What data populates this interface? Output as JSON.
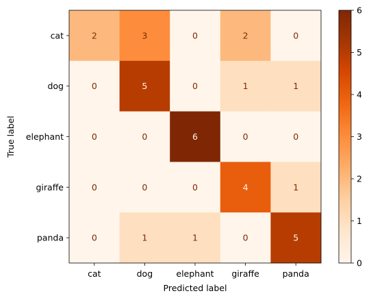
{
  "chart_data": {
    "type": "heatmap",
    "title": "",
    "xlabel": "Predicted label",
    "ylabel": "True label",
    "x_categories": [
      "cat",
      "dog",
      "elephant",
      "giraffe",
      "panda"
    ],
    "y_categories": [
      "cat",
      "dog",
      "elephant",
      "giraffe",
      "panda"
    ],
    "values": [
      [
        2,
        3,
        0,
        2,
        0
      ],
      [
        0,
        5,
        0,
        1,
        1
      ],
      [
        0,
        0,
        6,
        0,
        0
      ],
      [
        0,
        0,
        0,
        4,
        1
      ],
      [
        0,
        1,
        1,
        0,
        5
      ]
    ],
    "colormap": "Oranges",
    "vmin": 0,
    "vmax": 6,
    "colorbar_ticks": [
      0,
      1,
      2,
      3,
      4,
      5,
      6
    ],
    "colorbar_tick_labels": [
      "0",
      "1",
      "2",
      "3",
      "4",
      "5",
      "6"
    ],
    "text_color_light_cells": "#7f2704",
    "text_color_dark_cells": "#fff5eb"
  }
}
